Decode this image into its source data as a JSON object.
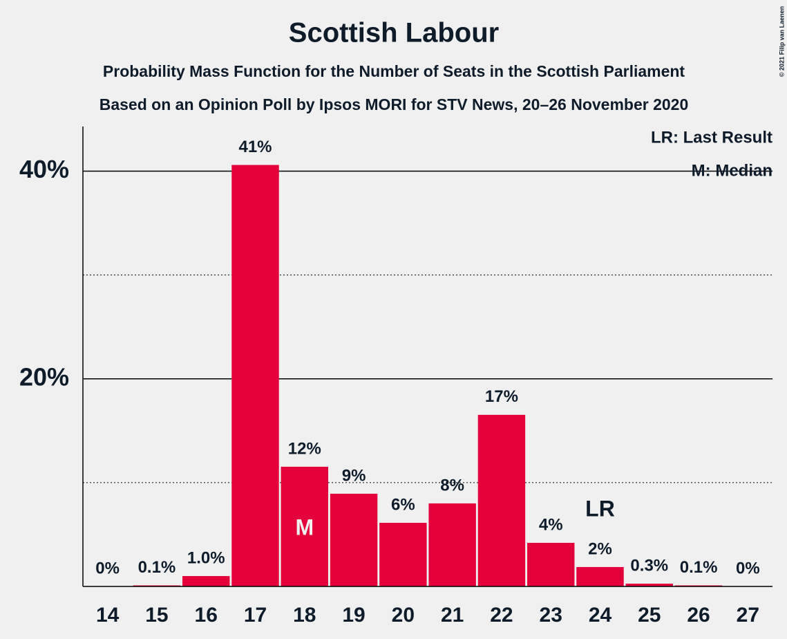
{
  "chart_data": {
    "type": "bar",
    "title": "Scottish Labour",
    "subtitle": "Probability Mass Function for the Number of Seats in the Scottish Parliament",
    "subtitle2": "Based on an Opinion Poll by Ipsos MORI for STV News, 20–26 November 2020",
    "copyright": "© 2021 Filip van Laenen",
    "legend": [
      "LR: Last Result",
      "M: Median"
    ],
    "categories": [
      "14",
      "15",
      "16",
      "17",
      "18",
      "19",
      "20",
      "21",
      "22",
      "23",
      "24",
      "25",
      "26",
      "27"
    ],
    "values": [
      0,
      0.1,
      1.0,
      40.6,
      11.53,
      8.93,
      6.13,
      8.0,
      16.53,
      4.2,
      1.87,
      0.27,
      0.1,
      0
    ],
    "value_labels": [
      "0%",
      "0.1%",
      "1.0%",
      "41%",
      "12%",
      "9%",
      "6%",
      "8%",
      "17%",
      "4%",
      "2%",
      "0.3%",
      "0.1%",
      "0%"
    ],
    "annotations": [
      {
        "text": "M",
        "category": "18"
      },
      {
        "text": "LR",
        "category": "24"
      }
    ],
    "color": "#e4003b",
    "ylim": [
      0,
      44.3
    ],
    "yticks": [
      {
        "value": 20,
        "label": "20%"
      },
      {
        "value": 40,
        "label": "40%"
      }
    ],
    "minor_grid": [
      10,
      30
    ],
    "grid": true
  }
}
